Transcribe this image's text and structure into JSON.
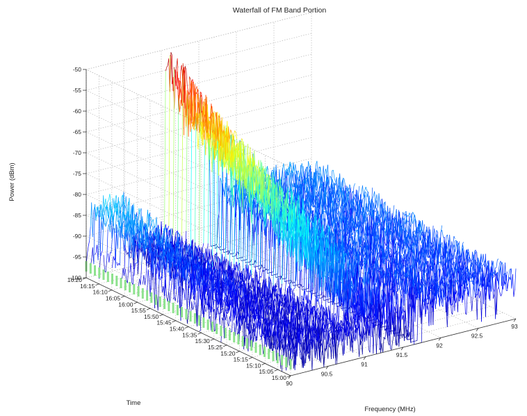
{
  "chart_data": {
    "type": "waterfall",
    "title": "Waterfall of FM Band Portion",
    "xlabel": "Frequency (MHz)",
    "ylabel": "Time",
    "zlabel": "Power (dBm)",
    "x_range": [
      90,
      93
    ],
    "x_ticks": [
      "90",
      "90.5",
      "91",
      "91.5",
      "92",
      "92.5",
      "93"
    ],
    "y_ticks": [
      "15:00",
      "15:05",
      "15:10",
      "15:15",
      "15:20",
      "15:25",
      "15:30",
      "15:35",
      "15:40",
      "15:45",
      "15:50",
      "15:55",
      "16:00",
      "16:05",
      "16:10",
      "16:15",
      "16:20"
    ],
    "z_range": [
      -100,
      -50
    ],
    "z_ticks": [
      "-50",
      "-55",
      "-60",
      "-65",
      "-70",
      "-75",
      "-80",
      "-85",
      "-90",
      "-95",
      "-100"
    ],
    "noise_floor_dbm": -94,
    "series": [
      {
        "band_mhz": [
          91.05,
          91.65
        ],
        "peak_power_dbm": [
          -53,
          -73
        ]
      },
      {
        "band_mhz": [
          90.05,
          90.5
        ],
        "peak_power_dbm": -84
      },
      {
        "band_mhz": [
          91.75,
          93.0
        ],
        "peak_power_dbm": -87
      }
    ],
    "colormap": [
      "#00008f",
      "#0000ff",
      "#0080ff",
      "#00ffff",
      "#80ff80",
      "#ffff00",
      "#ff8000",
      "#ff0000",
      "#800000"
    ],
    "grid": true
  }
}
